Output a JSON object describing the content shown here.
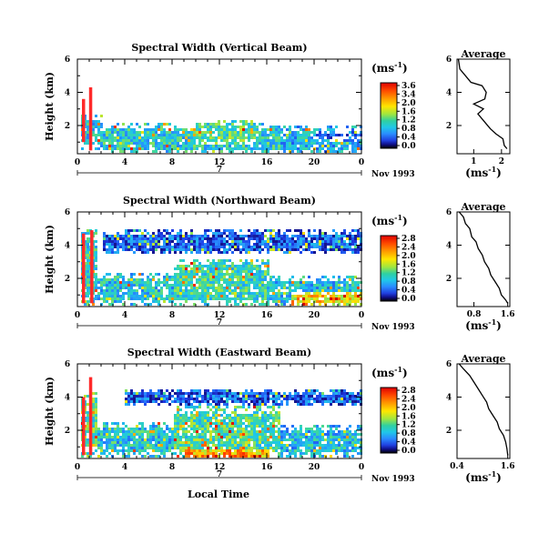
{
  "x_axis_label": "Local Time",
  "chart_data": [
    {
      "type": "heatmap",
      "title": "Spectral Width (Vertical Beam)",
      "ylabel": "Height (km)",
      "xlabel": "Local Time",
      "xlim": [
        0,
        24
      ],
      "ylim": [
        0.3,
        6
      ],
      "x_ticks": [
        "0",
        "4",
        "8",
        "12",
        "16",
        "20",
        "0"
      ],
      "y_ticks": [
        "6",
        "4",
        "2"
      ],
      "day_label": "7",
      "date_label": "Nov 1993",
      "colorbar": {
        "unit": "(ms",
        "unit_exp": "-1",
        "unit_close": ")",
        "ticks": [
          "3.6",
          "3.4",
          "2.0",
          "1.6",
          "1.2",
          "0.8",
          "0.4",
          "0.0"
        ]
      },
      "grid": false,
      "regions": [
        {
          "x0": 0.3,
          "x1": 2.0,
          "y0": 0.6,
          "y1": 2.8,
          "v": 0.35
        },
        {
          "x0": 2.0,
          "x1": 17.0,
          "y0": 0.4,
          "y1": 2.2,
          "v": 0.38
        },
        {
          "x0": 17.0,
          "x1": 24.0,
          "y0": 0.4,
          "y1": 2.0,
          "v": 0.3
        },
        {
          "x0": 10.0,
          "x1": 15.0,
          "y0": 1.0,
          "y1": 2.4,
          "v": 0.45
        },
        {
          "x0": 20.0,
          "x1": 24.0,
          "y0": 1.3,
          "y1": 1.7,
          "v": 0.2
        }
      ],
      "hot_columns": [
        {
          "x": 0.5,
          "y0": 1.0,
          "y1": 3.6
        },
        {
          "x": 1.1,
          "y0": 0.5,
          "y1": 4.3
        }
      ]
    },
    {
      "type": "heatmap",
      "title": "Spectral Width (Northward Beam)",
      "ylabel": "Height (km)",
      "xlabel": "Local Time",
      "xlim": [
        0,
        24
      ],
      "ylim": [
        0.3,
        6
      ],
      "x_ticks": [
        "0",
        "4",
        "8",
        "12",
        "16",
        "20",
        "0"
      ],
      "y_ticks": [
        "6",
        "4",
        "2"
      ],
      "day_label": "7",
      "date_label": "Nov 1993",
      "colorbar": {
        "unit": "(ms",
        "unit_exp": "-1",
        "unit_close": ")",
        "ticks": [
          "2.8",
          "2.4",
          "2.0",
          "1.6",
          "1.2",
          "0.8",
          "0.4",
          "0.0"
        ]
      },
      "grid": false,
      "regions": [
        {
          "x0": 0.2,
          "x1": 1.5,
          "y0": 0.5,
          "y1": 5.0,
          "v": 0.4
        },
        {
          "x0": 1.5,
          "x1": 8.0,
          "y0": 0.4,
          "y1": 2.4,
          "v": 0.35
        },
        {
          "x0": 8.0,
          "x1": 16.0,
          "y0": 0.4,
          "y1": 3.3,
          "v": 0.42
        },
        {
          "x0": 16.0,
          "x1": 24.0,
          "y0": 0.4,
          "y1": 2.2,
          "v": 0.33
        },
        {
          "x0": 2.0,
          "x1": 24.0,
          "y0": 3.5,
          "y1": 5.0,
          "v": 0.15
        },
        {
          "x0": 18.0,
          "x1": 24.0,
          "y0": 0.5,
          "y1": 1.2,
          "v": 0.7
        }
      ],
      "hot_columns": [
        {
          "x": 0.5,
          "y0": 0.5,
          "y1": 4.7
        },
        {
          "x": 1.2,
          "y0": 0.5,
          "y1": 4.9
        }
      ]
    },
    {
      "type": "heatmap",
      "title": "Spectral Width (Eastward Beam)",
      "ylabel": "Height (km)",
      "xlabel": "Local Time",
      "xlim": [
        0,
        24
      ],
      "ylim": [
        0.3,
        6
      ],
      "x_ticks": [
        "0",
        "4",
        "8",
        "12",
        "16",
        "20",
        "0"
      ],
      "y_ticks": [
        "6",
        "4",
        "2"
      ],
      "day_label": "7",
      "date_label": "Nov 1993",
      "colorbar": {
        "unit": "(ms",
        "unit_exp": "-1",
        "unit_close": ")",
        "ticks": [
          "2.8",
          "2.4",
          "2.0",
          "1.6",
          "1.2",
          "0.8",
          "0.4",
          "0.0"
        ]
      },
      "grid": false,
      "regions": [
        {
          "x0": 0.2,
          "x1": 1.5,
          "y0": 0.5,
          "y1": 4.4,
          "v": 0.45
        },
        {
          "x0": 1.5,
          "x1": 8.0,
          "y0": 0.4,
          "y1": 2.6,
          "v": 0.35
        },
        {
          "x0": 8.0,
          "x1": 17.0,
          "y0": 0.4,
          "y1": 3.5,
          "v": 0.45
        },
        {
          "x0": 17.0,
          "x1": 24.0,
          "y0": 0.4,
          "y1": 2.4,
          "v": 0.33
        },
        {
          "x0": 4.0,
          "x1": 24.0,
          "y0": 3.6,
          "y1": 4.6,
          "v": 0.15
        },
        {
          "x0": 9.0,
          "x1": 16.0,
          "y0": 0.4,
          "y1": 1.0,
          "v": 0.75
        }
      ],
      "hot_columns": [
        {
          "x": 0.5,
          "y0": 0.5,
          "y1": 4.0
        },
        {
          "x": 1.1,
          "y0": 0.5,
          "y1": 5.2
        }
      ]
    }
  ],
  "averages": [
    {
      "type": "line",
      "title": "Average",
      "xlabel": "(ms",
      "xlabel_exp": "-1",
      "xlabel_close": ")",
      "xlim": [
        0.4,
        2.3
      ],
      "x_ticks": [
        {
          "v": 1,
          "label": "1"
        },
        {
          "v": 2,
          "label": "2"
        }
      ],
      "ylim": [
        0.3,
        6
      ],
      "y_ticks": [
        "6",
        "4",
        "2"
      ],
      "profile": [
        [
          0.45,
          6.0
        ],
        [
          0.5,
          5.4
        ],
        [
          0.7,
          5.0
        ],
        [
          0.9,
          4.6
        ],
        [
          1.3,
          4.4
        ],
        [
          1.45,
          4.0
        ],
        [
          1.4,
          3.6
        ],
        [
          1.0,
          3.3
        ],
        [
          1.35,
          3.0
        ],
        [
          1.15,
          2.7
        ],
        [
          1.3,
          2.4
        ],
        [
          1.45,
          2.1
        ],
        [
          1.6,
          1.8
        ],
        [
          1.8,
          1.5
        ],
        [
          2.05,
          1.2
        ],
        [
          2.1,
          0.8
        ],
        [
          2.2,
          0.6
        ]
      ]
    },
    {
      "type": "line",
      "title": "Average",
      "xlabel": "(ms",
      "xlabel_exp": "-1",
      "xlabel_close": ")",
      "xlim": [
        0.4,
        1.65
      ],
      "x_ticks": [
        {
          "v": 0.8,
          "label": "0.8"
        },
        {
          "v": 1.6,
          "label": "1.6"
        }
      ],
      "ylim": [
        0.3,
        6
      ],
      "y_ticks": [
        "6",
        "4",
        "2"
      ],
      "profile": [
        [
          0.45,
          6.0
        ],
        [
          0.55,
          5.7
        ],
        [
          0.6,
          5.3
        ],
        [
          0.7,
          5.0
        ],
        [
          0.75,
          4.5
        ],
        [
          0.85,
          4.2
        ],
        [
          0.9,
          3.8
        ],
        [
          1.0,
          3.4
        ],
        [
          1.05,
          3.0
        ],
        [
          1.15,
          2.6
        ],
        [
          1.2,
          2.2
        ],
        [
          1.3,
          1.8
        ],
        [
          1.4,
          1.4
        ],
        [
          1.45,
          1.0
        ],
        [
          1.55,
          0.7
        ],
        [
          1.6,
          0.5
        ]
      ]
    },
    {
      "type": "line",
      "title": "Average",
      "xlabel": "(ms",
      "xlabel_exp": "-1",
      "xlabel_close": ")",
      "xlim": [
        0.4,
        1.65
      ],
      "x_ticks": [
        {
          "v": 0.4,
          "label": "0.4"
        },
        {
          "v": 1.6,
          "label": "1.6"
        }
      ],
      "ylim": [
        0.3,
        6
      ],
      "y_ticks": [
        "6",
        "4",
        "2"
      ],
      "profile": [
        [
          0.45,
          6.0
        ],
        [
          0.55,
          5.7
        ],
        [
          0.7,
          5.3
        ],
        [
          0.8,
          4.9
        ],
        [
          0.9,
          4.5
        ],
        [
          1.0,
          4.1
        ],
        [
          1.1,
          3.7
        ],
        [
          1.15,
          3.3
        ],
        [
          1.25,
          2.9
        ],
        [
          1.35,
          2.5
        ],
        [
          1.4,
          2.1
        ],
        [
          1.5,
          1.7
        ],
        [
          1.55,
          1.3
        ],
        [
          1.58,
          0.9
        ],
        [
          1.6,
          0.5
        ]
      ]
    }
  ]
}
